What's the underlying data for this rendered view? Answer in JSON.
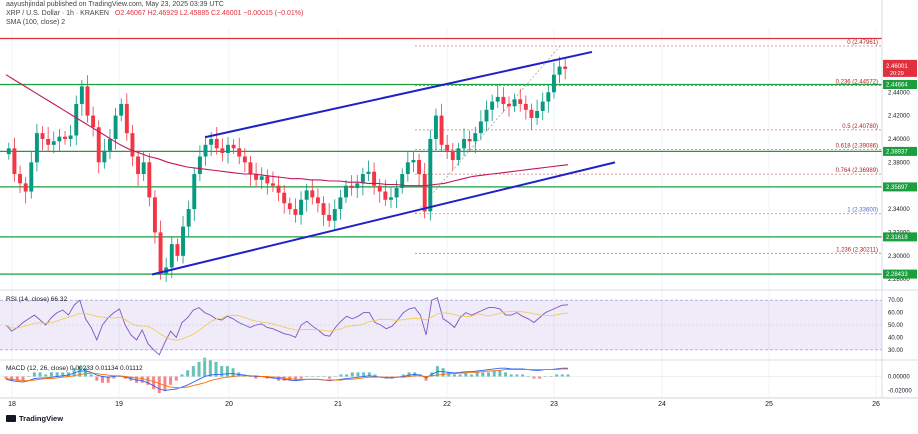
{
  "header": {
    "publisher": "aayushjindal published on TradingView.com, May 23, 2025 03:39 UTC",
    "symbol": "XRP / U.S. Dollar · 1h · KRAKEN",
    "ohlc": "O2.46067 H2.46929 L2.45885 C2.46001 −0.00015 (−0.01%)",
    "sma": "SMA (100, close) 2"
  },
  "brand": "TradingView",
  "colors": {
    "up": "#089981",
    "down": "#f23645",
    "sma": "#c2185b",
    "channel": "#1e22c8",
    "hline": "#1b9e3e",
    "resistance": "#e0303e",
    "fib": "#d27a7a",
    "rsi": "#7e57c2",
    "macd_line": "#2962ff",
    "signal_line": "#ff6d00"
  },
  "chart_data": [
    {
      "type": "candlestick",
      "title": "XRP / U.S. Dollar · 1h · KRAKEN",
      "x_ticks": [
        "18",
        "19",
        "20",
        "21",
        "22",
        "23",
        "24",
        "25",
        "26"
      ],
      "y_ticks": [
        "2.44000",
        "2.42000",
        "2.40000",
        "2.38000",
        "2.34000",
        "2.32000",
        "2.30000",
        "2.28000"
      ],
      "ylim": [
        2.275,
        2.495
      ],
      "price_label": {
        "value": "2.46001",
        "sub": "20:29"
      },
      "level_labels": [
        "2.44664",
        "2.38937",
        "2.35897",
        "2.31618",
        "2.28433"
      ],
      "fib_labels": [
        "0 (2.47961)",
        "0.236 (2.44572)",
        "0.5 (2.40780)",
        "0.618 (2.39086)",
        "0.764 (2.36989)",
        "1 (2.33600)",
        "1.236 (2.30211)"
      ],
      "fib_levels": [
        2.47961,
        2.44572,
        2.4078,
        2.39086,
        2.36989,
        2.336,
        2.30211
      ],
      "hlines": [
        2.44664,
        2.38937,
        2.35897,
        2.31618,
        2.28433
      ],
      "resistance": 2.486,
      "channel_upper": [
        [
          0.2,
          2.4015
        ],
        [
          0.6,
          2.4745
        ]
      ],
      "channel_lower": [
        [
          0.0,
          2.284
        ],
        [
          0.6,
          2.3753
        ]
      ],
      "sma_values": [
        2.455,
        2.45,
        2.445,
        2.44,
        2.435,
        2.43,
        2.425,
        2.42,
        2.415,
        2.41,
        2.405,
        2.4,
        2.395,
        2.391,
        2.388,
        2.385,
        2.383,
        2.38,
        2.378,
        2.376,
        2.375,
        2.374,
        2.373,
        2.372,
        2.371,
        2.37,
        2.37,
        2.369,
        2.368,
        2.367,
        2.366,
        2.366,
        2.365,
        2.365,
        2.364,
        2.364,
        2.363,
        2.363,
        2.362,
        2.362,
        2.361,
        2.361,
        2.36,
        2.36,
        2.36,
        2.361,
        2.362,
        2.364,
        2.366,
        2.368,
        2.369,
        2.37,
        2.371,
        2.372,
        2.373,
        2.374,
        2.375,
        2.376,
        2.377,
        2.378
      ],
      "closes": [
        2.392,
        2.37,
        2.362,
        2.355,
        2.38,
        2.405,
        2.4,
        2.395,
        2.398,
        2.402,
        2.4,
        2.403,
        2.43,
        2.445,
        2.42,
        2.41,
        2.38,
        2.39,
        2.4,
        2.42,
        2.43,
        2.405,
        2.385,
        2.37,
        2.38,
        2.35,
        2.32,
        2.285,
        2.29,
        2.31,
        2.3,
        2.325,
        2.34,
        2.37,
        2.385,
        2.395,
        2.4,
        2.392,
        2.388,
        2.395,
        2.392,
        2.385,
        2.38,
        2.37,
        2.365,
        2.368,
        2.362,
        2.36,
        2.354,
        2.345,
        2.34,
        2.335,
        2.348,
        2.356,
        2.35,
        2.345,
        2.335,
        2.33,
        2.34,
        2.35,
        2.36,
        2.358,
        2.362,
        2.37,
        2.372,
        2.36,
        2.355,
        2.348,
        2.35,
        2.358,
        2.37,
        2.38,
        2.382,
        2.37,
        2.338,
        2.4,
        2.42,
        2.395,
        2.39,
        2.382,
        2.392,
        2.4,
        2.398,
        2.405,
        2.415,
        2.425,
        2.432,
        2.436,
        2.43,
        2.428,
        2.434,
        2.43,
        2.425,
        2.418,
        2.424,
        2.432,
        2.44,
        2.455,
        2.462,
        2.46
      ],
      "volatility": 0.012
    },
    {
      "type": "line",
      "title": "RSI (14, close) 66.32",
      "values_label": "66.32",
      "y_ticks": [
        "70.00",
        "60.00",
        "50.00",
        "40.00",
        "30.00"
      ],
      "ylim": [
        25,
        75
      ],
      "band": [
        30,
        70
      ],
      "values": [
        50,
        45,
        48,
        52,
        55,
        58,
        54,
        50,
        56,
        60,
        62,
        58,
        66,
        70,
        55,
        48,
        38,
        50,
        56,
        60,
        63,
        50,
        42,
        38,
        46,
        35,
        30,
        26,
        36,
        45,
        40,
        52,
        56,
        62,
        64,
        60,
        58,
        55,
        54,
        57,
        55,
        52,
        50,
        48,
        50,
        51,
        48,
        47,
        45,
        43,
        42,
        40,
        50,
        53,
        49,
        46,
        42,
        41,
        48,
        53,
        57,
        55,
        57,
        60,
        60,
        52,
        50,
        47,
        49,
        54,
        60,
        63,
        64,
        58,
        42,
        70,
        72,
        55,
        52,
        48,
        56,
        60,
        58,
        60,
        62,
        64,
        64,
        63,
        58,
        58,
        60,
        57,
        55,
        52,
        56,
        60,
        62,
        64,
        66,
        66.32
      ]
    },
    {
      "type": "line",
      "title": "MACD (12, 26, close) 0.00233 0.01134 0.01112",
      "values_label": "0.00233 0.01134 0.01112",
      "y_ticks": [
        "0.00000",
        "-0.02000"
      ],
      "ylim": [
        -0.028,
        0.018
      ],
      "macd": [
        -0.004,
        -0.006,
        -0.007,
        -0.008,
        -0.006,
        -0.003,
        -0.002,
        -0.002,
        -0.001,
        0.0,
        0.001,
        0.002,
        0.005,
        0.008,
        0.008,
        0.006,
        0.002,
        0.0,
        -0.001,
        0.0,
        0.001,
        -0.001,
        -0.003,
        -0.005,
        -0.006,
        -0.009,
        -0.013,
        -0.018,
        -0.02,
        -0.019,
        -0.018,
        -0.015,
        -0.012,
        -0.008,
        -0.004,
        0.0,
        0.002,
        0.003,
        0.003,
        0.004,
        0.004,
        0.003,
        0.002,
        0.001,
        0.0,
        0.0,
        -0.001,
        -0.002,
        -0.003,
        -0.004,
        -0.005,
        -0.006,
        -0.005,
        -0.004,
        -0.004,
        -0.004,
        -0.005,
        -0.006,
        -0.005,
        -0.004,
        -0.003,
        -0.002,
        -0.001,
        0.0,
        0.001,
        0.0,
        -0.001,
        -0.002,
        -0.002,
        -0.001,
        0.0,
        0.002,
        0.003,
        0.002,
        -0.002,
        0.003,
        0.007,
        0.007,
        0.006,
        0.005,
        0.006,
        0.007,
        0.007,
        0.008,
        0.009,
        0.01,
        0.011,
        0.012,
        0.012,
        0.011,
        0.011,
        0.011,
        0.01,
        0.009,
        0.009,
        0.01,
        0.01,
        0.011,
        0.012,
        0.012
      ],
      "signal": [
        -0.003,
        -0.004,
        -0.005,
        -0.006,
        -0.006,
        -0.005,
        -0.004,
        -0.003,
        -0.003,
        -0.002,
        -0.001,
        0.0,
        0.001,
        0.003,
        0.004,
        0.005,
        0.004,
        0.003,
        0.002,
        0.001,
        0.001,
        0.0,
        -0.001,
        -0.002,
        -0.003,
        -0.005,
        -0.007,
        -0.01,
        -0.013,
        -0.015,
        -0.016,
        -0.016,
        -0.015,
        -0.013,
        -0.011,
        -0.009,
        -0.006,
        -0.004,
        -0.002,
        -0.001,
        0.0,
        0.001,
        0.001,
        0.001,
        0.001,
        0.0,
        0.0,
        -0.001,
        -0.001,
        -0.002,
        -0.003,
        -0.004,
        -0.004,
        -0.004,
        -0.004,
        -0.004,
        -0.005,
        -0.005,
        -0.005,
        -0.005,
        -0.004,
        -0.004,
        -0.003,
        -0.002,
        -0.001,
        -0.001,
        -0.001,
        -0.001,
        -0.001,
        -0.001,
        -0.001,
        0.0,
        0.001,
        0.001,
        0.0,
        0.001,
        0.002,
        0.003,
        0.004,
        0.004,
        0.005,
        0.005,
        0.006,
        0.006,
        0.007,
        0.008,
        0.008,
        0.009,
        0.01,
        0.01,
        0.01,
        0.01,
        0.01,
        0.01,
        0.01,
        0.01,
        0.01,
        0.01,
        0.011,
        0.011
      ]
    }
  ]
}
